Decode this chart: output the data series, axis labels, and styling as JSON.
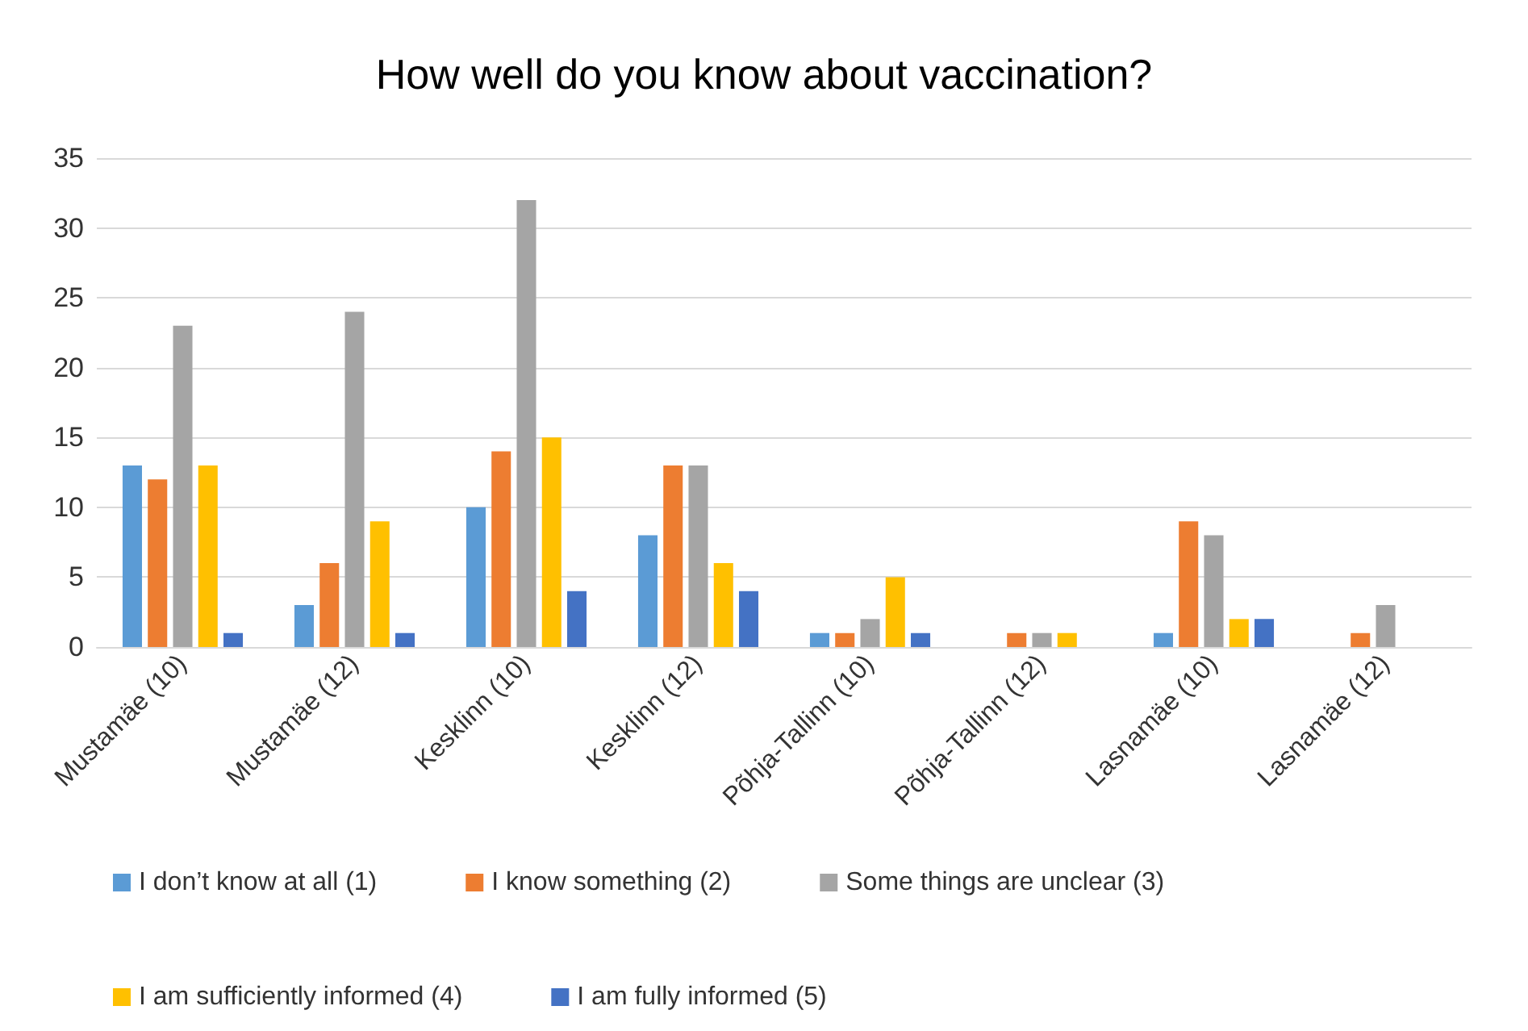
{
  "chart_data": {
    "type": "bar",
    "title": "How well do you know about vaccination?",
    "categories": [
      "Mustamäe (10)",
      "Mustamäe (12)",
      "Kesklinn (10)",
      "Kesklinn (12)",
      "Põhja-Tallinn (10)",
      "Põhja-Tallinn (12)",
      "Lasnamäe (10)",
      "Lasnamäe (12)"
    ],
    "series": [
      {
        "name": "I don’t know at all (1)",
        "color": "#5b9bd5",
        "values": [
          13,
          3,
          10,
          8,
          1,
          0,
          1,
          0
        ]
      },
      {
        "name": "I know something (2)",
        "color": "#ed7d31",
        "values": [
          12,
          6,
          14,
          13,
          1,
          1,
          9,
          1
        ]
      },
      {
        "name": "Some things are unclear (3)",
        "color": "#a5a5a5",
        "values": [
          23,
          24,
          32,
          13,
          2,
          1,
          8,
          3
        ]
      },
      {
        "name": "I am sufficiently informed (4)",
        "color": "#ffc000",
        "values": [
          13,
          9,
          15,
          6,
          5,
          1,
          2,
          0
        ]
      },
      {
        "name": "I am fully informed (5)",
        "color": "#4472c4",
        "values": [
          1,
          1,
          4,
          4,
          1,
          0,
          2,
          0
        ]
      }
    ],
    "ylim": [
      0,
      35
    ],
    "yticks": [
      0,
      5,
      10,
      15,
      20,
      25,
      30,
      35
    ],
    "grid": "y",
    "legend": "bottom"
  }
}
